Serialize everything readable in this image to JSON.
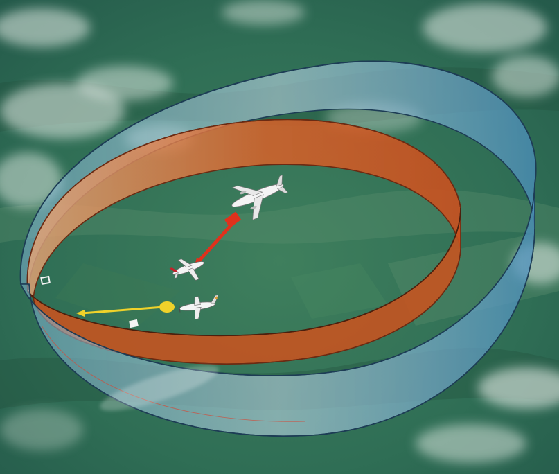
{
  "scene": {
    "description_free": true,
    "colors": {
      "ground": "#2f6e55",
      "ground_dark": "#214f3d",
      "ground_light": "#5c8f6e",
      "cloud": "#e8efe9",
      "outer_volume": "#4d8fba",
      "outer_volume_edge": "#1d3c55",
      "inner_volume": "#d9622a",
      "inner_volume_edge": "#6b2a12",
      "threat_arrow": "#e0311c",
      "advisory_dot": "#f0d22a",
      "aircraft": "#f4f4f4"
    }
  },
  "aircraft": [
    {
      "id": "intruder-airliner",
      "icon": "jet-airliner-icon"
    },
    {
      "id": "own-aircraft",
      "icon": "business-jet-icon"
    },
    {
      "id": "proximate-aircraft",
      "icon": "turboprop-icon"
    }
  ],
  "markers": [
    {
      "id": "traffic-advisory",
      "icon": "open-square-icon"
    },
    {
      "id": "other-traffic",
      "icon": "filled-square-icon"
    }
  ]
}
